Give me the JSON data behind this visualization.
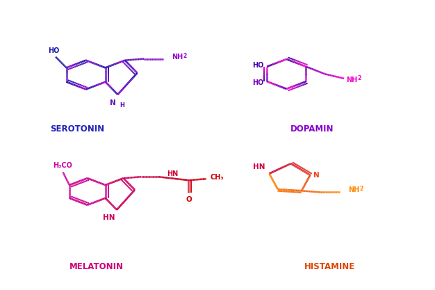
{
  "background_color": "#ffffff",
  "molecules": {
    "serotonin": {
      "name": "SEROTONIN",
      "label_color": "#2222bb",
      "gradient_start": "#1a1aaa",
      "gradient_end": "#9900cc"
    },
    "dopamin": {
      "name": "DOPAMIN",
      "label_color": "#8800cc",
      "gradient_start": "#4400aa",
      "gradient_end": "#ff00cc"
    },
    "melatonin": {
      "name": "MELATONIN",
      "label_color": "#cc0077",
      "gradient_start": "#cc00aa",
      "gradient_end": "#cc0000"
    },
    "histamine": {
      "name": "HISTAMINE",
      "label_color": "#dd4400",
      "gradient_start": "#cc0044",
      "gradient_end": "#ff8800"
    }
  }
}
